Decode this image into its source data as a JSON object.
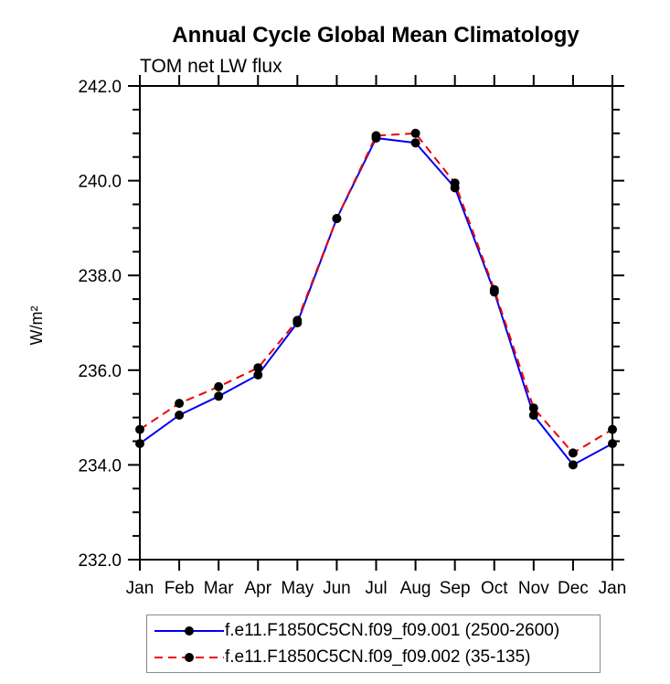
{
  "header": {
    "title": "Annual Cycle Global Mean Climatology",
    "subtitle": "TOM net LW flux"
  },
  "chart_data": {
    "type": "line",
    "categories": [
      "Jan",
      "Feb",
      "Mar",
      "Apr",
      "May",
      "Jun",
      "Jul",
      "Aug",
      "Sep",
      "Oct",
      "Nov",
      "Dec",
      "Jan"
    ],
    "series": [
      {
        "name": "f.e11.F1850C5CN.f09_f09.001 (2500-2600)",
        "color": "#0000ee",
        "line_style": "solid",
        "marker": "filled-circle",
        "marker_color": "#000000",
        "values": [
          234.45,
          235.05,
          235.45,
          235.9,
          237.0,
          239.2,
          240.9,
          240.8,
          239.85,
          237.65,
          235.05,
          234.0,
          234.45
        ]
      },
      {
        "name": "f.e11.F1850C5CN.f09_f09.002 (35-135)",
        "color": "#ee0000",
        "line_style": "dashed",
        "marker": "filled-circle",
        "marker_color": "#000000",
        "values": [
          234.75,
          235.3,
          235.65,
          236.05,
          237.05,
          239.2,
          240.95,
          241.0,
          239.95,
          237.7,
          235.2,
          234.25,
          234.75
        ]
      }
    ],
    "title": "Annual Cycle Global Mean Climatology",
    "subtitle": "TOM net LW flux",
    "xlabel": "",
    "ylabel": "W/m²",
    "ylim": [
      232.0,
      242.0
    ],
    "yticks_major": [
      232.0,
      234.0,
      236.0,
      238.0,
      240.0,
      242.0
    ],
    "ytick_minor_step": 0.5,
    "ytick_decimals": 1,
    "grid": false,
    "legend_position": "bottom"
  },
  "axis_style": {
    "axis_color": "#000000",
    "tick_label_color": "#000000"
  }
}
